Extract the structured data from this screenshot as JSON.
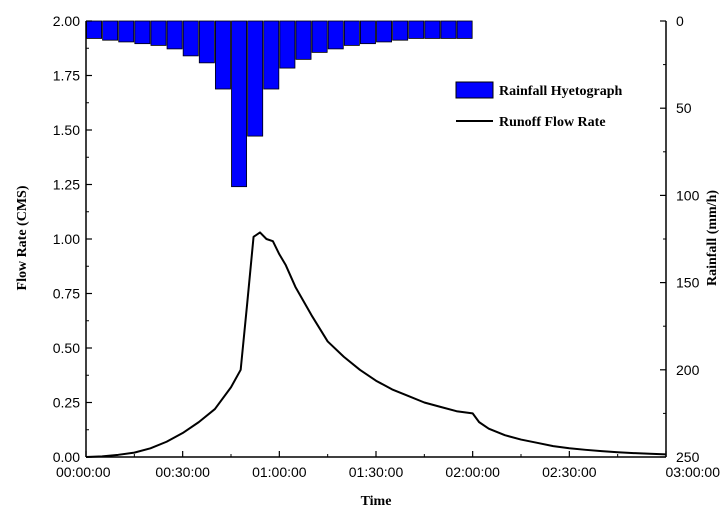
{
  "chart_data": {
    "type": "bar+line",
    "xlabel": "Time",
    "ylabel_left": "Flow Rate (CMS)",
    "ylabel_right": "Rainfall (mm/h)",
    "x_tick_labels": [
      "00:00:00",
      "00:30:00",
      "01:00:00",
      "01:30:00",
      "02:00:00",
      "02:30:00",
      "03:00:00"
    ],
    "x_range_minutes": [
      0,
      180
    ],
    "y_left_range": [
      0,
      2.0
    ],
    "y_left_ticks": [
      "0.00",
      "0.25",
      "0.50",
      "0.75",
      "1.00",
      "1.25",
      "1.50",
      "1.75",
      "2.00"
    ],
    "y_right_range": [
      0,
      250
    ],
    "y_right_inverted": true,
    "y_right_ticks": [
      "0",
      "50",
      "100",
      "150",
      "200",
      "250"
    ],
    "legend_placement": "top-right",
    "series": [
      {
        "name": "Rainfall Hyetograph",
        "kind": "bar",
        "axis": "right",
        "color": "#0000ff",
        "bar_width_minutes": 5,
        "x_start_minutes": [
          0,
          5,
          10,
          15,
          20,
          25,
          30,
          35,
          40,
          45,
          50,
          55,
          60,
          65,
          70,
          75,
          80,
          85,
          90,
          95,
          100,
          105,
          110,
          115
        ],
        "values": [
          10,
          11,
          12,
          13,
          14,
          16,
          20,
          24,
          39,
          95,
          66,
          39,
          27,
          22,
          18,
          16,
          14,
          13,
          12,
          11,
          10,
          10,
          10,
          10
        ]
      },
      {
        "name": "Runoff Flow Rate",
        "kind": "line",
        "axis": "left",
        "color": "#000000",
        "points": [
          [
            0,
            0
          ],
          [
            5,
            0.003
          ],
          [
            10,
            0.01
          ],
          [
            15,
            0.02
          ],
          [
            20,
            0.04
          ],
          [
            25,
            0.07
          ],
          [
            30,
            0.11
          ],
          [
            35,
            0.16
          ],
          [
            40,
            0.22
          ],
          [
            45,
            0.32
          ],
          [
            48,
            0.4
          ],
          [
            50,
            0.7
          ],
          [
            52,
            1.01
          ],
          [
            54,
            1.03
          ],
          [
            56,
            1.0
          ],
          [
            58,
            0.99
          ],
          [
            60,
            0.93
          ],
          [
            62,
            0.88
          ],
          [
            65,
            0.78
          ],
          [
            70,
            0.65
          ],
          [
            75,
            0.53
          ],
          [
            80,
            0.46
          ],
          [
            85,
            0.4
          ],
          [
            90,
            0.35
          ],
          [
            95,
            0.31
          ],
          [
            100,
            0.28
          ],
          [
            105,
            0.25
          ],
          [
            110,
            0.23
          ],
          [
            115,
            0.21
          ],
          [
            120,
            0.2
          ],
          [
            122,
            0.16
          ],
          [
            125,
            0.13
          ],
          [
            130,
            0.1
          ],
          [
            135,
            0.08
          ],
          [
            140,
            0.065
          ],
          [
            145,
            0.05
          ],
          [
            150,
            0.04
          ],
          [
            155,
            0.033
          ],
          [
            160,
            0.027
          ],
          [
            165,
            0.022
          ],
          [
            170,
            0.018
          ],
          [
            175,
            0.015
          ],
          [
            180,
            0.012
          ]
        ]
      }
    ]
  }
}
